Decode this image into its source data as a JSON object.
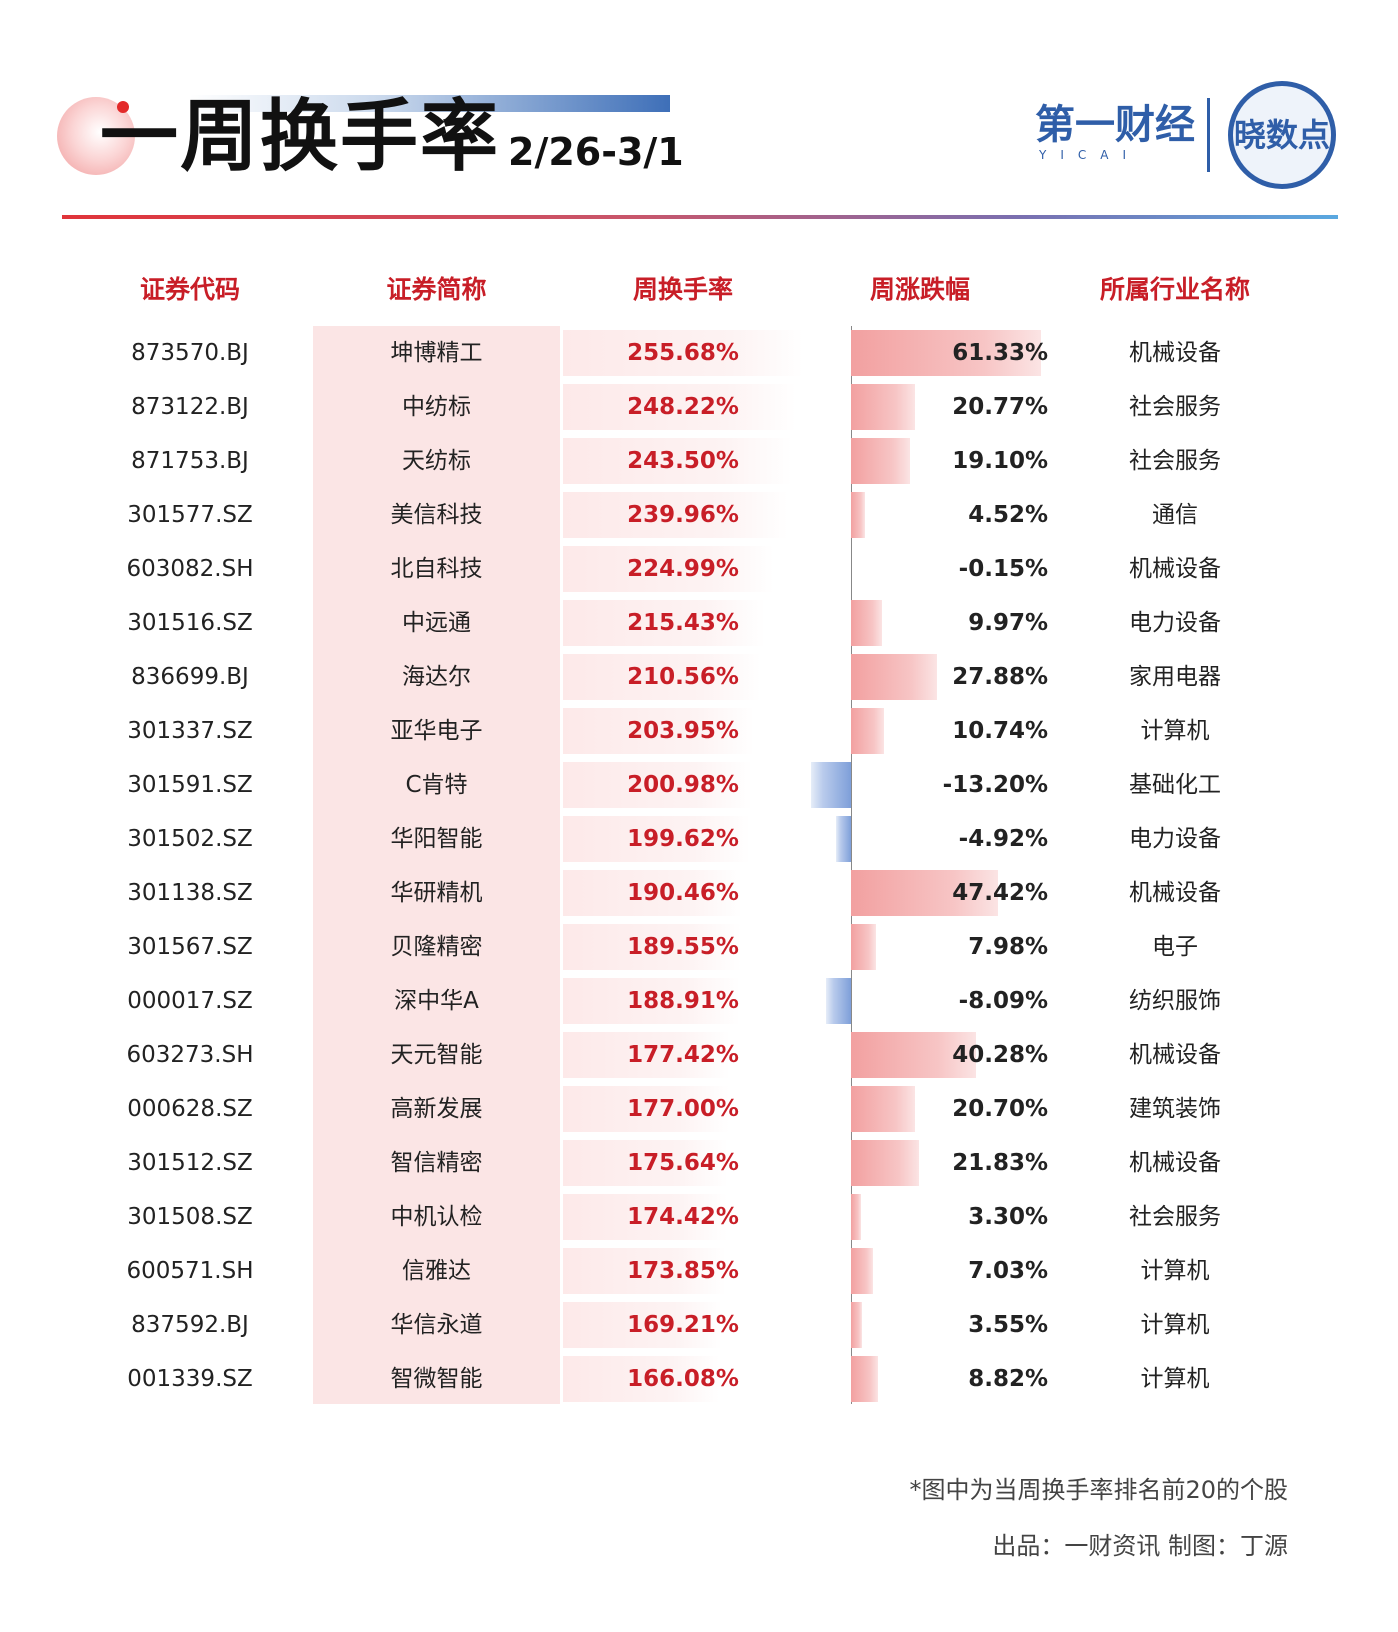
{
  "header": {
    "title": "一周换手率",
    "date_range": "2/26-3/1",
    "logo_cn": "第一财经",
    "logo_en": "YICAI",
    "badge_text": "晓数点"
  },
  "columns": {
    "code": "证券代码",
    "name": "证券简称",
    "turnover": "周换手率",
    "change": "周涨跌幅",
    "industry": "所属行业名称"
  },
  "colors": {
    "accent_red": "#c81e27",
    "positive_bar": "#f2a0a0",
    "negative_bar": "#7e9fd9",
    "brand_blue": "#2f5ea8"
  },
  "chart_data": {
    "type": "table",
    "rows": [
      {
        "code": "873570.BJ",
        "name": "坤博精工",
        "turnover": 255.68,
        "turnover_label": "255.68%",
        "change": 61.33,
        "change_label": "61.33%",
        "industry": "机械设备"
      },
      {
        "code": "873122.BJ",
        "name": "中纺标",
        "turnover": 248.22,
        "turnover_label": "248.22%",
        "change": 20.77,
        "change_label": "20.77%",
        "industry": "社会服务"
      },
      {
        "code": "871753.BJ",
        "name": "天纺标",
        "turnover": 243.5,
        "turnover_label": "243.50%",
        "change": 19.1,
        "change_label": "19.10%",
        "industry": "社会服务"
      },
      {
        "code": "301577.SZ",
        "name": "美信科技",
        "turnover": 239.96,
        "turnover_label": "239.96%",
        "change": 4.52,
        "change_label": "4.52%",
        "industry": "通信"
      },
      {
        "code": "603082.SH",
        "name": "北自科技",
        "turnover": 224.99,
        "turnover_label": "224.99%",
        "change": -0.15,
        "change_label": "-0.15%",
        "industry": "机械设备"
      },
      {
        "code": "301516.SZ",
        "name": "中远通",
        "turnover": 215.43,
        "turnover_label": "215.43%",
        "change": 9.97,
        "change_label": "9.97%",
        "industry": "电力设备"
      },
      {
        "code": "836699.BJ",
        "name": "海达尔",
        "turnover": 210.56,
        "turnover_label": "210.56%",
        "change": 27.88,
        "change_label": "27.88%",
        "industry": "家用电器"
      },
      {
        "code": "301337.SZ",
        "name": "亚华电子",
        "turnover": 203.95,
        "turnover_label": "203.95%",
        "change": 10.74,
        "change_label": "10.74%",
        "industry": "计算机"
      },
      {
        "code": "301591.SZ",
        "name": "C肯特",
        "turnover": 200.98,
        "turnover_label": "200.98%",
        "change": -13.2,
        "change_label": "-13.20%",
        "industry": "基础化工"
      },
      {
        "code": "301502.SZ",
        "name": "华阳智能",
        "turnover": 199.62,
        "turnover_label": "199.62%",
        "change": -4.92,
        "change_label": "-4.92%",
        "industry": "电力设备"
      },
      {
        "code": "301138.SZ",
        "name": "华研精机",
        "turnover": 190.46,
        "turnover_label": "190.46%",
        "change": 47.42,
        "change_label": "47.42%",
        "industry": "机械设备"
      },
      {
        "code": "301567.SZ",
        "name": "贝隆精密",
        "turnover": 189.55,
        "turnover_label": "189.55%",
        "change": 7.98,
        "change_label": "7.98%",
        "industry": "电子"
      },
      {
        "code": "000017.SZ",
        "name": "深中华A",
        "turnover": 188.91,
        "turnover_label": "188.91%",
        "change": -8.09,
        "change_label": "-8.09%",
        "industry": "纺织服饰"
      },
      {
        "code": "603273.SH",
        "name": "天元智能",
        "turnover": 177.42,
        "turnover_label": "177.42%",
        "change": 40.28,
        "change_label": "40.28%",
        "industry": "机械设备"
      },
      {
        "code": "000628.SZ",
        "name": "高新发展",
        "turnover": 177.0,
        "turnover_label": "177.00%",
        "change": 20.7,
        "change_label": "20.70%",
        "industry": "建筑装饰"
      },
      {
        "code": "301512.SZ",
        "name": "智信精密",
        "turnover": 175.64,
        "turnover_label": "175.64%",
        "change": 21.83,
        "change_label": "21.83%",
        "industry": "机械设备"
      },
      {
        "code": "301508.SZ",
        "name": "中机认检",
        "turnover": 174.42,
        "turnover_label": "174.42%",
        "change": 3.3,
        "change_label": "3.30%",
        "industry": "社会服务"
      },
      {
        "code": "600571.SH",
        "name": "信雅达",
        "turnover": 173.85,
        "turnover_label": "173.85%",
        "change": 7.03,
        "change_label": "7.03%",
        "industry": "计算机"
      },
      {
        "code": "837592.BJ",
        "name": "华信永道",
        "turnover": 169.21,
        "turnover_label": "169.21%",
        "change": 3.55,
        "change_label": "3.55%",
        "industry": "计算机"
      },
      {
        "code": "001339.SZ",
        "name": "智微智能",
        "turnover": 166.08,
        "turnover_label": "166.08%",
        "change": 8.82,
        "change_label": "8.82%",
        "industry": "计算机"
      }
    ]
  },
  "footer": {
    "note": "*图中为当周换手率排名前20的个股",
    "credit": "出品：一财资讯 制图：丁源"
  }
}
